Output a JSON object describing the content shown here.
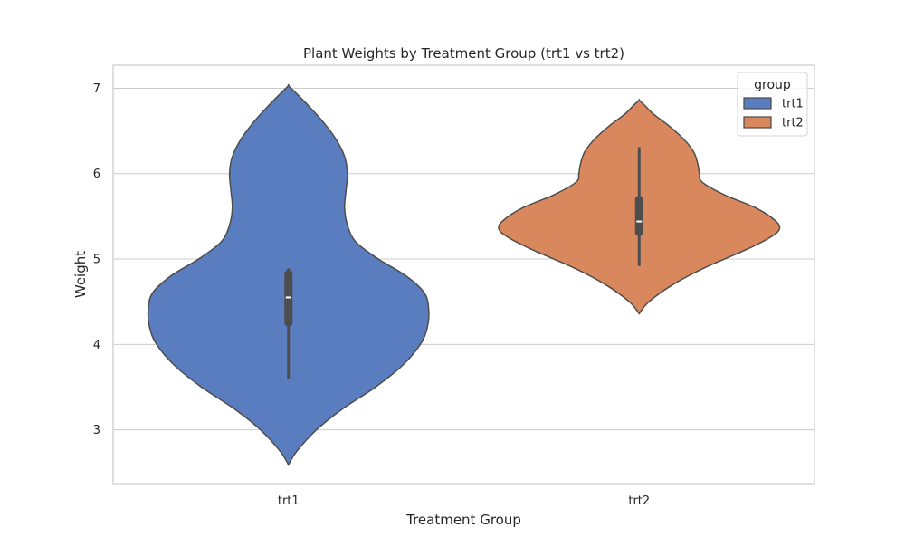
{
  "chart_data": {
    "type": "violin",
    "title": "Plant Weights by Treatment Group (trt1 vs trt2)",
    "xlabel": "Treatment Group",
    "ylabel": "Weight",
    "categories": [
      "trt1",
      "trt2"
    ],
    "ylim": [
      2.37,
      7.27
    ],
    "yticks": [
      3,
      4,
      5,
      6,
      7
    ],
    "grid": true,
    "legend": {
      "title": "group",
      "placement": "top-right",
      "entries": [
        "trt1",
        "trt2"
      ]
    },
    "series": [
      {
        "name": "trt1",
        "color": "#5a7dc0",
        "min": 3.59,
        "q1": 4.21,
        "median": 4.55,
        "q3": 4.87,
        "max": 4.89,
        "whisker_high": 4.89,
        "whisker_low": 3.59,
        "kde_range": [
          2.59,
          7.03
        ],
        "density": [
          [
            2.59,
            0.0
          ],
          [
            2.75,
            0.06
          ],
          [
            3.0,
            0.2
          ],
          [
            3.25,
            0.39
          ],
          [
            3.5,
            0.62
          ],
          [
            3.75,
            0.81
          ],
          [
            4.0,
            0.94
          ],
          [
            4.2,
            0.99
          ],
          [
            4.4,
            1.0
          ],
          [
            4.6,
            0.97
          ],
          [
            4.8,
            0.84
          ],
          [
            5.0,
            0.64
          ],
          [
            5.2,
            0.48
          ],
          [
            5.4,
            0.42
          ],
          [
            5.6,
            0.4
          ],
          [
            5.8,
            0.41
          ],
          [
            6.0,
            0.42
          ],
          [
            6.2,
            0.4
          ],
          [
            6.4,
            0.34
          ],
          [
            6.6,
            0.25
          ],
          [
            6.8,
            0.14
          ],
          [
            6.95,
            0.05
          ],
          [
            7.03,
            0.0
          ]
        ]
      },
      {
        "name": "trt2",
        "color": "#d9875c",
        "min": 4.92,
        "q1": 5.27,
        "median": 5.44,
        "q3": 5.74,
        "max": 6.31,
        "whisker_high": 6.31,
        "whisker_low": 4.92,
        "kde_range": [
          4.36,
          6.86
        ],
        "density": [
          [
            4.36,
            0.0
          ],
          [
            4.5,
            0.07
          ],
          [
            4.7,
            0.24
          ],
          [
            4.9,
            0.47
          ],
          [
            5.1,
            0.75
          ],
          [
            5.25,
            0.93
          ],
          [
            5.35,
            1.0
          ],
          [
            5.45,
            0.97
          ],
          [
            5.6,
            0.83
          ],
          [
            5.75,
            0.61
          ],
          [
            5.9,
            0.45
          ],
          [
            6.0,
            0.43
          ],
          [
            6.1,
            0.42
          ],
          [
            6.25,
            0.39
          ],
          [
            6.4,
            0.32
          ],
          [
            6.55,
            0.22
          ],
          [
            6.7,
            0.1
          ],
          [
            6.8,
            0.04
          ],
          [
            6.86,
            0.0
          ]
        ]
      }
    ]
  }
}
